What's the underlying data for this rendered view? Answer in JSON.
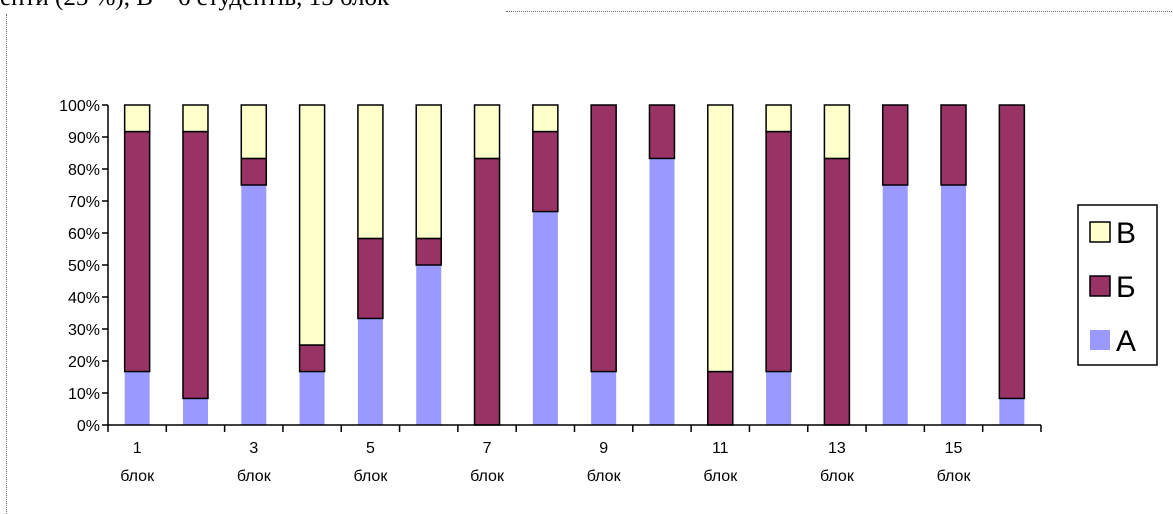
{
  "document": {
    "caption_fragment": "енти (25 %), В – 6 студентів, 15 блок"
  },
  "chart_data": {
    "type": "bar",
    "stacked": "percent",
    "categories": [
      "1 блок",
      "2 блок",
      "3 блок",
      "4 блок",
      "5 блок",
      "6 блок",
      "7 блок",
      "8 блок",
      "9 блок",
      "10 блок",
      "11 блок",
      "12 блок",
      "13 блок",
      "14 блок",
      "15 блок",
      "16 блок"
    ],
    "x_tick_labels": [
      {
        "number": "1",
        "unit": "блок"
      },
      {
        "number": "3",
        "unit": "блок"
      },
      {
        "number": "5",
        "unit": "блок"
      },
      {
        "number": "7",
        "unit": "блок"
      },
      {
        "number": "9",
        "unit": "блок"
      },
      {
        "number": "11",
        "unit": "блок"
      },
      {
        "number": "13",
        "unit": "блок"
      },
      {
        "number": "15",
        "unit": "блок"
      }
    ],
    "y_ticks": [
      "0%",
      "10%",
      "20%",
      "30%",
      "40%",
      "50%",
      "60%",
      "70%",
      "80%",
      "90%",
      "100%"
    ],
    "ylim": [
      0,
      100
    ],
    "series": [
      {
        "name": "А",
        "color": "#9999ff",
        "values": [
          16.7,
          8.3,
          75,
          16.7,
          33.3,
          50,
          0,
          66.7,
          16.7,
          83.3,
          0,
          16.7,
          0,
          75,
          75,
          8.3
        ]
      },
      {
        "name": "Б",
        "color": "#993366",
        "values": [
          75,
          83.4,
          8.3,
          8.3,
          25,
          8.3,
          83.3,
          25,
          83.3,
          16.7,
          16.7,
          75,
          83.3,
          25,
          25,
          91.7
        ]
      },
      {
        "name": "В",
        "color": "#ffffcc",
        "values": [
          8.3,
          8.3,
          16.7,
          75,
          41.7,
          41.7,
          16.7,
          8.3,
          0,
          0,
          83.3,
          8.3,
          16.7,
          0,
          0,
          0
        ]
      }
    ],
    "legend": {
      "position": "right",
      "items": [
        {
          "name": "В",
          "color": "#ffffcc"
        },
        {
          "name": "Б",
          "color": "#993366"
        },
        {
          "name": "А",
          "color": "#9999ff"
        }
      ]
    },
    "grid": false
  }
}
